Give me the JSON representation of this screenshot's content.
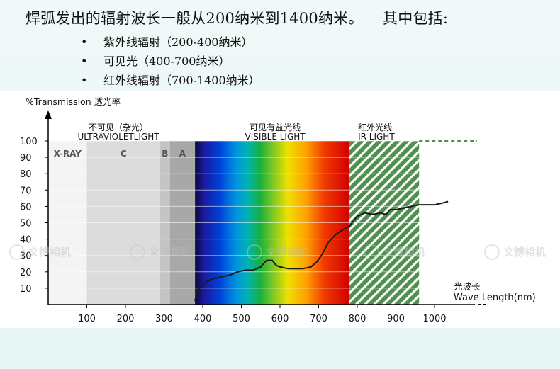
{
  "slide": {
    "title": "焊弧发出的辐射波长一般从200纳米到1400纳米。    其中包括:",
    "bullets": [
      "紫外线辐射（200-400纳米）",
      "可见光（400-700纳米）",
      "红外线辐射（700-1400纳米）"
    ]
  },
  "watermark": "文博相机",
  "chart_data": {
    "type": "line",
    "ylabel": "%Transmission 透光率",
    "xlabel_cn": "光波长",
    "xlabel": "Wave Length(nm)",
    "xticks": [
      100,
      200,
      300,
      400,
      500,
      600,
      700,
      800,
      900,
      1000
    ],
    "yticks": [
      10,
      20,
      30,
      40,
      50,
      60,
      70,
      80,
      90,
      100
    ],
    "xlim": [
      0,
      1100
    ],
    "ylim": [
      0,
      100
    ],
    "grid": true,
    "regions": [
      {
        "label": "X-RAY",
        "x0": 0,
        "x1": 100,
        "color": "#f4f4f4"
      },
      {
        "label": "C",
        "x0": 100,
        "x1": 290,
        "color": "#dcdcdc"
      },
      {
        "label": "B",
        "x0": 290,
        "x1": 315,
        "color": "#c4c4c4"
      },
      {
        "label": "A",
        "x0": 315,
        "x1": 380,
        "color": "#a8a8a8"
      }
    ],
    "band_labels": [
      {
        "cn": "不可见（杂光）",
        "en": "ULTRAVIOLETLIGHT"
      },
      {
        "cn": "可见有益光线",
        "en": "VISIBLE LIGHT"
      },
      {
        "cn": "红外光线",
        "en": "IR LIGHT"
      }
    ],
    "visible_range": [
      380,
      780
    ],
    "ir_range": [
      780,
      960
    ],
    "series": [
      {
        "x": [
          380,
          385,
          395,
          410,
          430,
          450,
          470,
          490,
          510,
          530,
          550,
          565,
          580,
          590,
          600,
          620,
          640,
          660,
          680,
          695,
          710,
          725,
          745,
          765,
          780,
          800,
          820,
          840,
          860,
          875,
          885,
          900,
          920,
          940,
          960,
          980,
          1000,
          1020,
          1035
        ],
        "y": [
          2,
          8,
          11,
          14,
          16,
          17,
          18,
          20,
          21,
          21,
          23,
          27,
          27,
          24,
          23,
          22,
          22,
          22,
          23,
          26,
          31,
          38,
          43,
          46,
          48,
          54,
          56,
          55,
          56,
          55,
          58,
          58,
          59,
          60,
          61,
          61,
          61,
          62,
          63
        ]
      }
    ]
  }
}
